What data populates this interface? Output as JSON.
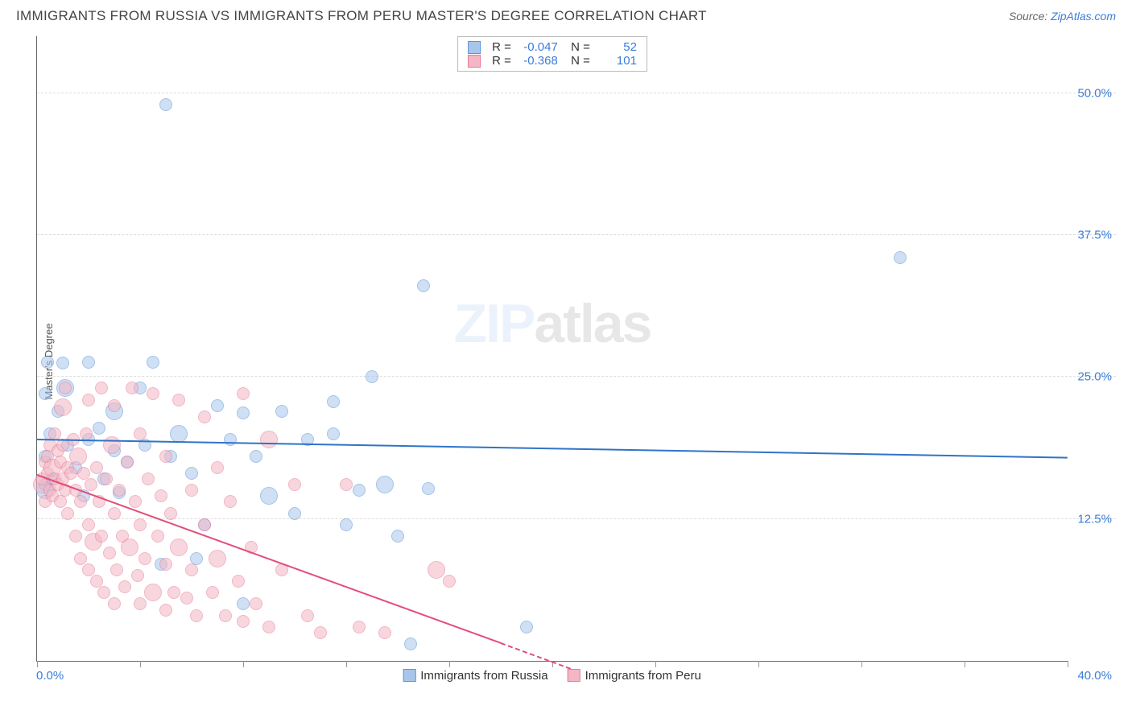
{
  "header": {
    "title": "IMMIGRANTS FROM RUSSIA VS IMMIGRANTS FROM PERU MASTER'S DEGREE CORRELATION CHART",
    "source_prefix": "Source: ",
    "source_link": "ZipAtlas.com"
  },
  "watermark": {
    "part1": "ZIP",
    "part2": "atlas"
  },
  "chart": {
    "type": "scatter",
    "ylabel": "Master's Degree",
    "xlim": [
      0.0,
      40.0
    ],
    "ylim": [
      0.0,
      55.0
    ],
    "yticks": [
      {
        "v": 12.5,
        "label": "12.5%"
      },
      {
        "v": 25.0,
        "label": "25.0%"
      },
      {
        "v": 37.5,
        "label": "37.5%"
      },
      {
        "v": 50.0,
        "label": "50.0%"
      }
    ],
    "xtick_positions": [
      0,
      4,
      8,
      12,
      16,
      20,
      24,
      28,
      32,
      36,
      40
    ],
    "xaxis_min_label": "0.0%",
    "xaxis_max_label": "40.0%",
    "background_color": "#ffffff",
    "grid_color": "#dddddd",
    "marker_radius": 8,
    "marker_radius_large": 11,
    "series": [
      {
        "name": "Immigrants from Russia",
        "key": "russia",
        "fill": "#a8c6ec",
        "fill_opacity": 0.55,
        "stroke": "#5a94d6",
        "line_color": "#2f74c7",
        "R": "-0.047",
        "N": "52",
        "trend": {
          "x1": 0.0,
          "y1": 19.4,
          "x2": 40.0,
          "y2": 17.8
        },
        "points": [
          [
            0.3,
            15.0
          ],
          [
            0.3,
            15.5
          ],
          [
            0.3,
            18.0
          ],
          [
            0.3,
            23.5
          ],
          [
            0.4,
            26.3
          ],
          [
            0.5,
            20.0
          ],
          [
            0.6,
            16.0
          ],
          [
            0.8,
            22.0
          ],
          [
            1.0,
            26.2
          ],
          [
            1.1,
            24.0
          ],
          [
            1.2,
            19.0
          ],
          [
            1.5,
            17.0
          ],
          [
            1.8,
            14.5
          ],
          [
            2.0,
            26.3
          ],
          [
            2.0,
            19.5
          ],
          [
            2.4,
            20.5
          ],
          [
            2.6,
            16.0
          ],
          [
            3.0,
            18.5
          ],
          [
            3.0,
            22.0
          ],
          [
            3.2,
            14.8
          ],
          [
            3.5,
            17.5
          ],
          [
            4.0,
            24.0
          ],
          [
            4.2,
            19.0
          ],
          [
            4.5,
            26.3
          ],
          [
            4.8,
            8.5
          ],
          [
            5.0,
            49.0
          ],
          [
            5.2,
            18.0
          ],
          [
            5.5,
            20.0
          ],
          [
            6.0,
            16.5
          ],
          [
            6.2,
            9.0
          ],
          [
            6.5,
            12.0
          ],
          [
            7.0,
            22.5
          ],
          [
            7.5,
            19.5
          ],
          [
            8.0,
            5.0
          ],
          [
            8.0,
            21.8
          ],
          [
            8.5,
            18.0
          ],
          [
            9.0,
            14.5
          ],
          [
            9.5,
            22.0
          ],
          [
            10.0,
            13.0
          ],
          [
            10.5,
            19.5
          ],
          [
            11.5,
            20.0
          ],
          [
            11.5,
            22.8
          ],
          [
            12.0,
            12.0
          ],
          [
            12.5,
            15.0
          ],
          [
            13.0,
            25.0
          ],
          [
            13.5,
            15.5
          ],
          [
            14.0,
            11.0
          ],
          [
            14.5,
            1.5
          ],
          [
            15.0,
            33.0
          ],
          [
            15.2,
            15.2
          ],
          [
            19.0,
            3.0
          ],
          [
            33.5,
            35.5
          ]
        ]
      },
      {
        "name": "Immigrants from Peru",
        "key": "peru",
        "fill": "#f4b6c4",
        "fill_opacity": 0.55,
        "stroke": "#e77a99",
        "line_color": "#e24e7a",
        "R": "-0.368",
        "N": "101",
        "trend": {
          "x1": 0.0,
          "y1": 16.3,
          "x2": 18.0,
          "y2": 1.5
        },
        "trend_dashed": {
          "x1": 18.0,
          "y1": 1.5,
          "x2": 21.0,
          "y2": -1.0
        },
        "points": [
          [
            0.2,
            15.5
          ],
          [
            0.2,
            16.0
          ],
          [
            0.3,
            14.0
          ],
          [
            0.3,
            17.5
          ],
          [
            0.4,
            16.5
          ],
          [
            0.4,
            18.0
          ],
          [
            0.5,
            15.0
          ],
          [
            0.5,
            19.0
          ],
          [
            0.6,
            14.5
          ],
          [
            0.6,
            17.0
          ],
          [
            0.7,
            16.0
          ],
          [
            0.7,
            20.0
          ],
          [
            0.8,
            15.5
          ],
          [
            0.8,
            18.5
          ],
          [
            0.9,
            14.0
          ],
          [
            0.9,
            17.5
          ],
          [
            1.0,
            16.0
          ],
          [
            1.0,
            19.0
          ],
          [
            1.0,
            22.3
          ],
          [
            1.1,
            15.0
          ],
          [
            1.1,
            24.0
          ],
          [
            1.2,
            13.0
          ],
          [
            1.2,
            17.0
          ],
          [
            1.3,
            16.5
          ],
          [
            1.4,
            19.5
          ],
          [
            1.5,
            11.0
          ],
          [
            1.5,
            15.0
          ],
          [
            1.6,
            18.0
          ],
          [
            1.7,
            9.0
          ],
          [
            1.7,
            14.0
          ],
          [
            1.8,
            16.5
          ],
          [
            1.9,
            20.0
          ],
          [
            2.0,
            8.0
          ],
          [
            2.0,
            12.0
          ],
          [
            2.0,
            23.0
          ],
          [
            2.1,
            15.5
          ],
          [
            2.2,
            10.5
          ],
          [
            2.3,
            7.0
          ],
          [
            2.3,
            17.0
          ],
          [
            2.4,
            14.0
          ],
          [
            2.5,
            24.0
          ],
          [
            2.5,
            11.0
          ],
          [
            2.6,
            6.0
          ],
          [
            2.7,
            16.0
          ],
          [
            2.8,
            9.5
          ],
          [
            2.9,
            19.0
          ],
          [
            3.0,
            5.0
          ],
          [
            3.0,
            13.0
          ],
          [
            3.0,
            22.5
          ],
          [
            3.1,
            8.0
          ],
          [
            3.2,
            15.0
          ],
          [
            3.3,
            11.0
          ],
          [
            3.4,
            6.5
          ],
          [
            3.5,
            17.5
          ],
          [
            3.6,
            10.0
          ],
          [
            3.7,
            24.0
          ],
          [
            3.8,
            14.0
          ],
          [
            3.9,
            7.5
          ],
          [
            4.0,
            5.0
          ],
          [
            4.0,
            12.0
          ],
          [
            4.0,
            20.0
          ],
          [
            4.2,
            9.0
          ],
          [
            4.3,
            16.0
          ],
          [
            4.5,
            6.0
          ],
          [
            4.5,
            23.5
          ],
          [
            4.7,
            11.0
          ],
          [
            4.8,
            14.5
          ],
          [
            5.0,
            4.5
          ],
          [
            5.0,
            8.5
          ],
          [
            5.0,
            18.0
          ],
          [
            5.2,
            13.0
          ],
          [
            5.3,
            6.0
          ],
          [
            5.5,
            10.0
          ],
          [
            5.5,
            23.0
          ],
          [
            5.8,
            5.5
          ],
          [
            6.0,
            15.0
          ],
          [
            6.0,
            8.0
          ],
          [
            6.2,
            4.0
          ],
          [
            6.5,
            12.0
          ],
          [
            6.5,
            21.5
          ],
          [
            6.8,
            6.0
          ],
          [
            7.0,
            9.0
          ],
          [
            7.0,
            17.0
          ],
          [
            7.3,
            4.0
          ],
          [
            7.5,
            14.0
          ],
          [
            7.8,
            7.0
          ],
          [
            8.0,
            3.5
          ],
          [
            8.0,
            23.5
          ],
          [
            8.3,
            10.0
          ],
          [
            8.5,
            5.0
          ],
          [
            9.0,
            19.5
          ],
          [
            9.0,
            3.0
          ],
          [
            9.5,
            8.0
          ],
          [
            10.0,
            15.5
          ],
          [
            10.5,
            4.0
          ],
          [
            11.0,
            2.5
          ],
          [
            12.0,
            15.5
          ],
          [
            12.5,
            3.0
          ],
          [
            13.5,
            2.5
          ],
          [
            15.5,
            8.0
          ],
          [
            16.0,
            7.0
          ]
        ]
      }
    ]
  }
}
